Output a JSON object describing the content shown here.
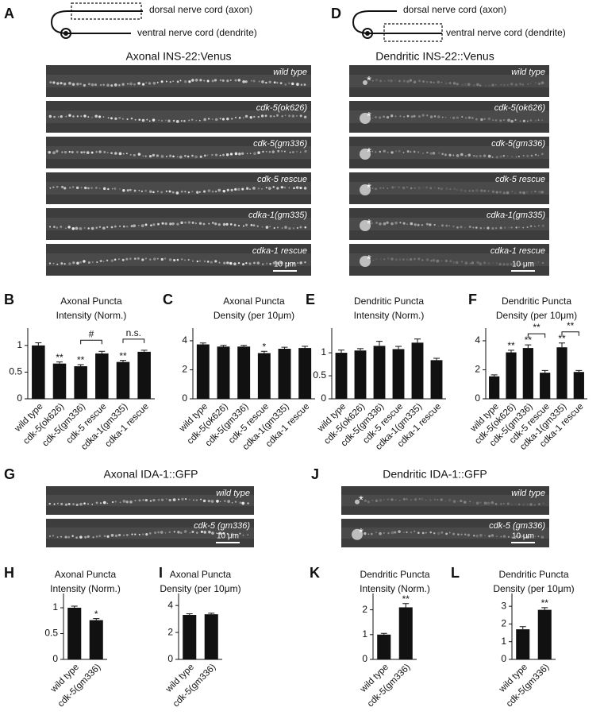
{
  "image_panels": [
    {
      "panel": "A",
      "diagram": {
        "dorsal": "dorsal nerve cord (axon)",
        "ventral": "ventral nerve cord (dendrite)"
      },
      "title": "Axonal INS-22:Venus",
      "strips": [
        "wild type",
        "cdk-5(ok626)",
        "cdk-5(gm336)",
        "cdk-5 rescue",
        "cdka-1(gm335)",
        "cdka-1 rescue"
      ],
      "scale_bar": "10 μm"
    },
    {
      "panel": "D",
      "diagram": {
        "dorsal": "dorsal nerve cord (axon)",
        "ventral": "ventral nerve cord (dendrite)"
      },
      "title": "Dendritic INS-22::Venus",
      "strips": [
        "wild type",
        "cdk-5(ok626)",
        "cdk-5(gm336)",
        "cdk-5 rescue",
        "cdka-1(gm335)",
        "cdka-1 rescue"
      ],
      "scale_bar": "10 μm",
      "cell_body_marker": "*"
    },
    {
      "panel": "G",
      "title": "Axonal IDA-1::GFP",
      "strips": [
        "wild type",
        "cdk-5 (gm336)"
      ],
      "scale_bar": "10 μm"
    },
    {
      "panel": "J",
      "title": "Dendritic IDA-1::GFP",
      "strips": [
        "wild type",
        "cdk-5 (gm336)"
      ],
      "scale_bar": "10 μm",
      "cell_body_marker": "*"
    }
  ],
  "chart_data": [
    {
      "type": "bar",
      "panel": "B",
      "title": [
        "Axonal Puncta",
        "Intensity (Norm.)"
      ],
      "color": "#111111",
      "categories": [
        "wild type",
        "cdk-5(ok626)",
        "cdk-5(gm336)",
        "cdk-5 rescue",
        "cdka-1(gm335)",
        "cdka-1 rescue"
      ],
      "values": [
        1.0,
        0.66,
        0.61,
        0.85,
        0.69,
        0.88
      ],
      "errors": [
        0.05,
        0.03,
        0.03,
        0.04,
        0.03,
        0.03
      ],
      "significance": [
        null,
        "**",
        "**",
        null,
        "**",
        null
      ],
      "brackets": [
        {
          "text": "#",
          "categories": [
            "cdk-5(gm336)",
            "cdk-5 rescue"
          ]
        },
        {
          "text": "n.s.",
          "categories": [
            "cdka-1(gm335)",
            "cdka-1 rescue"
          ]
        }
      ],
      "ylim": [
        0,
        1.25
      ],
      "yticks": [
        0,
        0.5,
        1
      ]
    },
    {
      "type": "bar",
      "panel": "C",
      "title": [
        "Axonal Puncta",
        "Density (per 10μm)"
      ],
      "color": "#111111",
      "categories": [
        "wild type",
        "cdk-5(ok626)",
        "cdk-5(gm336)",
        "cdk-5 rescue",
        "cdka-1(gm335)",
        "cdka-1 rescue"
      ],
      "values": [
        3.75,
        3.6,
        3.6,
        3.15,
        3.45,
        3.5
      ],
      "errors": [
        0.1,
        0.08,
        0.08,
        0.12,
        0.1,
        0.12
      ],
      "significance": [
        null,
        null,
        null,
        "*",
        null,
        null
      ],
      "ylim": [
        0,
        4.6
      ],
      "yticks": [
        0,
        2,
        4
      ]
    },
    {
      "type": "bar",
      "panel": "E",
      "title": [
        "Dendritic Puncta",
        "Intensity (Norm.)"
      ],
      "color": "#111111",
      "categories": [
        "wild type",
        "cdk-5(ok626)",
        "cdk-5(gm336)",
        "cdk-5 rescue",
        "cdka-1(gm335)",
        "cdka-1 rescue"
      ],
      "values": [
        1.0,
        1.05,
        1.15,
        1.08,
        1.22,
        0.84
      ],
      "errors": [
        0.06,
        0.04,
        0.1,
        0.06,
        0.08,
        0.04
      ],
      "ylim": [
        0,
        1.45
      ],
      "yticks": [
        0,
        0.5,
        1
      ]
    },
    {
      "type": "bar",
      "panel": "F",
      "title": [
        "Dendritic Puncta",
        "Density (per 10μm)"
      ],
      "color": "#111111",
      "categories": [
        "wild type",
        "cdk-5(ok626)",
        "cdk-5(gm336)",
        "cdk-5 rescue",
        "cdka-1(gm335)",
        "cdka-1 rescue"
      ],
      "values": [
        1.55,
        3.2,
        3.5,
        1.8,
        3.55,
        1.85
      ],
      "errors": [
        0.1,
        0.15,
        0.22,
        0.15,
        0.3,
        0.1
      ],
      "significance": [
        null,
        "**",
        "**",
        null,
        "**",
        null
      ],
      "brackets": [
        {
          "text": "**",
          "categories": [
            "cdk-5(gm336)",
            "cdk-5 rescue"
          ]
        },
        {
          "text": "**",
          "categories": [
            "cdka-1(gm335)",
            "cdka-1 rescue"
          ]
        }
      ],
      "ylim": [
        0,
        4.6
      ],
      "yticks": [
        0,
        2,
        4
      ]
    },
    {
      "type": "bar",
      "panel": "H",
      "title": [
        "Axonal Puncta",
        "Intensity (Norm.)"
      ],
      "color": "#111111",
      "categories": [
        "wild type",
        "cdk-5(gm336)"
      ],
      "values": [
        1.0,
        0.76
      ],
      "errors": [
        0.03,
        0.03
      ],
      "significance": [
        null,
        "*"
      ],
      "ylim": [
        0,
        1.2
      ],
      "yticks": [
        0,
        0.5,
        1
      ]
    },
    {
      "type": "bar",
      "panel": "I",
      "title": [
        "Axonal Puncta",
        "Density (per 10μm)"
      ],
      "color": "#111111",
      "categories": [
        "wild type",
        "cdk-5(gm336)"
      ],
      "values": [
        3.3,
        3.35
      ],
      "errors": [
        0.08,
        0.08
      ],
      "ylim": [
        0,
        4.6
      ],
      "yticks": [
        0,
        2,
        4
      ]
    },
    {
      "type": "bar",
      "panel": "K",
      "title": [
        "Dendritic Puncta",
        "Intensity (Norm.)"
      ],
      "color": "#111111",
      "categories": [
        "wild type",
        "cdk-5(gm336)"
      ],
      "values": [
        1.0,
        2.1
      ],
      "errors": [
        0.05,
        0.15
      ],
      "significance": [
        null,
        "**"
      ],
      "ylim": [
        0,
        2.5
      ],
      "yticks": [
        0,
        1,
        2
      ]
    },
    {
      "type": "bar",
      "panel": "L",
      "title": [
        "Dendritic Puncta",
        "Density (per 10μm)"
      ],
      "color": "#111111",
      "categories": [
        "wild type",
        "cdk-5(gm336)"
      ],
      "values": [
        1.7,
        2.8
      ],
      "errors": [
        0.15,
        0.12
      ],
      "significance": [
        null,
        "**"
      ],
      "ylim": [
        0,
        3.5
      ],
      "yticks": [
        0,
        1,
        2,
        3
      ]
    }
  ]
}
